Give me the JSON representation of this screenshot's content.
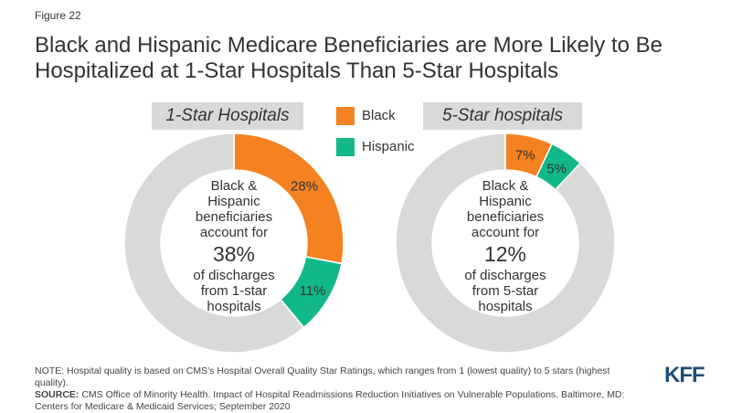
{
  "figure_label": "Figure 22",
  "title": {
    "line1": "Black and Hispanic Medicare Beneficiaries are More Likely to Be",
    "line2": "Hospitalized at 1-Star Hospitals Than 5-Star Hospitals"
  },
  "legend": [
    {
      "label": "Black",
      "color": "#f58220"
    },
    {
      "label": "Hispanic",
      "color": "#13b88a"
    }
  ],
  "chart_data": [
    {
      "type": "pie",
      "title": "1-Star Hospitals",
      "donut": true,
      "slices": [
        {
          "name": "Black",
          "value": 28,
          "label": "28%",
          "color": "#f58220"
        },
        {
          "name": "Hispanic",
          "value": 11,
          "label": "11%",
          "color": "#13b88a"
        },
        {
          "name": "",
          "value": 61,
          "label": "",
          "color": "#d9d9d9"
        }
      ],
      "center_text": {
        "line1": "Black &",
        "line2": "Hispanic",
        "line3": "beneficiaries",
        "line4": "account for",
        "value": "38%",
        "line5": "of discharges",
        "line6": "from 1-star",
        "line7": "hospitals"
      }
    },
    {
      "type": "pie",
      "title": "5-Star hospitals",
      "donut": true,
      "slices": [
        {
          "name": "Black",
          "value": 7,
          "label": "7%",
          "color": "#f58220"
        },
        {
          "name": "Hispanic",
          "value": 5,
          "label": "5%",
          "color": "#13b88a"
        },
        {
          "name": "",
          "value": 88,
          "label": "",
          "color": "#d9d9d9"
        }
      ],
      "center_text": {
        "line1": "Black &",
        "line2": "Hispanic",
        "line3": "beneficiaries",
        "line4": "account for",
        "value": "12%",
        "line5": "of discharges",
        "line6": "from 5-star",
        "line7": "hospitals"
      }
    }
  ],
  "footer": {
    "note": "NOTE: Hospital quality is based on CMS’s Hospital Overall Quality Star Ratings, which ranges from 1 (lowest quality) to 5 stars (highest quality).",
    "source_label": "SOURCE:",
    "source": " CMS Office of Minority Health. Impact of Hospital Readmissions Reduction Initiatives on Vulnerable Populations. Baltimore, MD: Centers for Medicare & Medicaid Services; September 2020"
  },
  "logo": "KFF"
}
